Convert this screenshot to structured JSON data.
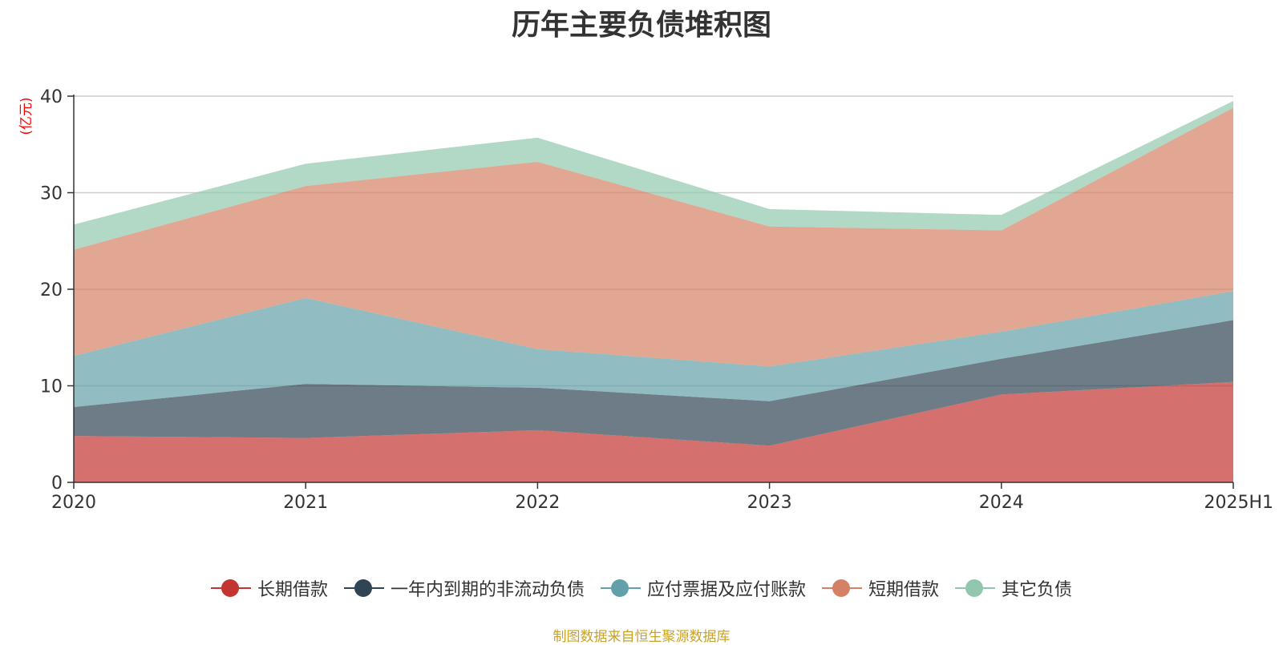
{
  "chart_data": {
    "type": "area",
    "title": "历年主要负债堆积图",
    "unit_label": "(亿元)",
    "x": [
      "2020",
      "2021",
      "2022",
      "2023",
      "2024",
      "2025H1"
    ],
    "ylim": [
      0,
      40
    ],
    "yticks": [
      "0",
      "10",
      "20",
      "30",
      "40"
    ],
    "grid": true,
    "legend_position": "bottom",
    "stacked": true,
    "series": [
      {
        "name": "长期借款",
        "color": "#c23531",
        "values": [
          4.8,
          4.6,
          5.4,
          3.8,
          9.1,
          10.4
        ]
      },
      {
        "name": "一年内到期的非流动负债",
        "color": "#2f4554",
        "values": [
          3.0,
          5.6,
          4.4,
          4.6,
          3.7,
          6.4
        ]
      },
      {
        "name": "应付票据及应付账款",
        "color": "#61a0a8",
        "values": [
          5.3,
          8.9,
          4.0,
          3.6,
          2.8,
          3.0
        ]
      },
      {
        "name": "短期借款",
        "color": "#d48265",
        "values": [
          11.0,
          11.6,
          19.4,
          14.5,
          10.5,
          19.0
        ]
      },
      {
        "name": "其它负债",
        "color": "#91c7ae",
        "values": [
          2.6,
          2.3,
          2.5,
          1.8,
          1.6,
          0.7
        ]
      }
    ]
  },
  "footer": {
    "source": "制图数据来自恒生聚源数据库"
  }
}
